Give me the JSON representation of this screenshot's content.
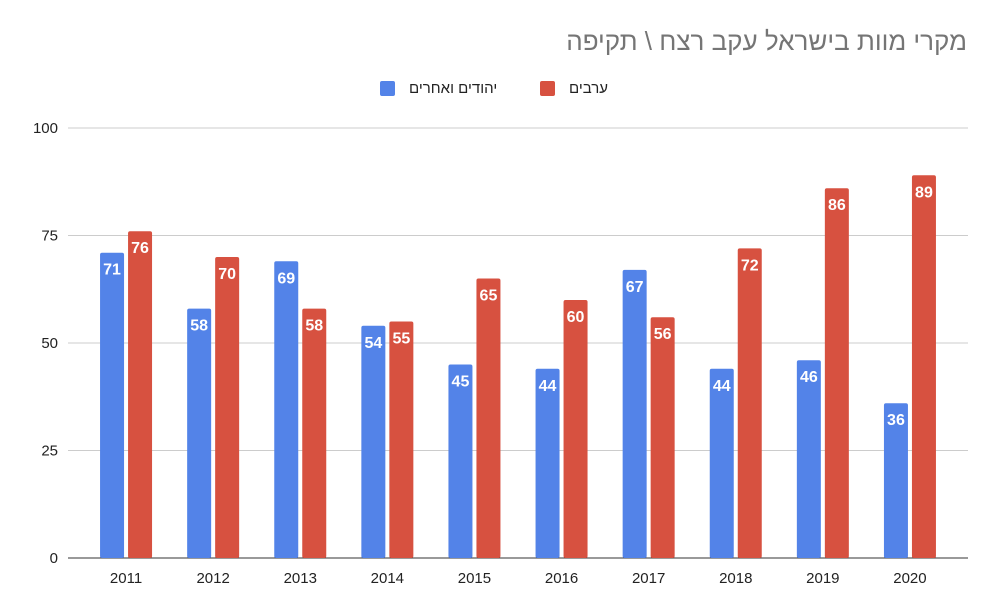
{
  "chart_data": {
    "type": "bar",
    "title": "מקרי מוות בישראל עקב רצח \\ תקיפה",
    "categories": [
      "2011",
      "2012",
      "2013",
      "2014",
      "2015",
      "2016",
      "2017",
      "2018",
      "2019",
      "2020"
    ],
    "series": [
      {
        "name": "יהודים ואחרים",
        "color": "#5383e8",
        "values": [
          71,
          58,
          69,
          54,
          45,
          44,
          67,
          44,
          46,
          36
        ]
      },
      {
        "name": "ערבים",
        "color": "#d75140",
        "values": [
          76,
          70,
          58,
          55,
          65,
          60,
          56,
          72,
          86,
          89
        ]
      }
    ],
    "ylim": [
      0,
      100
    ],
    "yticks": [
      0,
      25,
      50,
      75,
      100
    ],
    "xlabel": "",
    "ylabel": "",
    "grid": true,
    "legend": "top"
  }
}
